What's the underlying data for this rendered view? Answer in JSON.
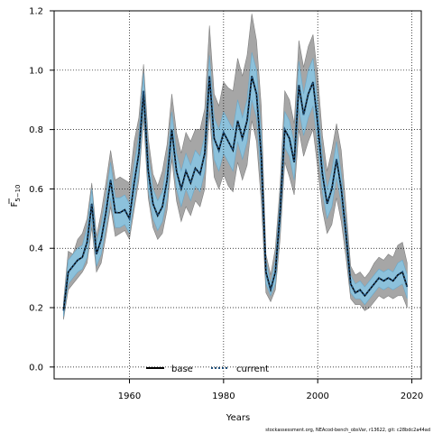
{
  "chart_data": {
    "type": "line",
    "xlabel": "Years",
    "ylabel": "F",
    "ylabel_sub": "5−10",
    "xlim": [
      1944,
      2022
    ],
    "ylim": [
      -0.04,
      1.2
    ],
    "xticks": [
      1960,
      1980,
      2000,
      2020
    ],
    "yticks": [
      0.0,
      0.2,
      0.4,
      0.6,
      0.8,
      1.0,
      1.2
    ],
    "ytick_labels": [
      "0.0",
      "0.2",
      "0.4",
      "0.6",
      "0.8",
      "1.0",
      "1.2"
    ],
    "xtick_labels": [
      "1960",
      "1980",
      "2000",
      "2020"
    ],
    "grid": true,
    "legend_position": "bottom-center",
    "footer": "stockassessment.org, NEAcod-bench_obsVar, r13622, git: c28bdc2a44ad",
    "colors": {
      "base_band": "#a6a6a6",
      "current_band": "#8cc1db",
      "base_line": "#000000",
      "current_line": "#1f4e79"
    },
    "series": [
      {
        "name": "base",
        "style": "solid",
        "x": [
          1946,
          1947,
          1948,
          1949,
          1950,
          1951,
          1952,
          1953,
          1954,
          1955,
          1956,
          1957,
          1958,
          1959,
          1960,
          1961,
          1962,
          1963,
          1964,
          1965,
          1966,
          1967,
          1968,
          1969,
          1970,
          1971,
          1972,
          1973,
          1974,
          1975,
          1976,
          1977,
          1978,
          1979,
          1980,
          1981,
          1982,
          1983,
          1984,
          1985,
          1986,
          1987,
          1988,
          1989,
          1990,
          1991,
          1992,
          1993,
          1994,
          1995,
          1996,
          1997,
          1998,
          1999,
          2000,
          2001,
          2002,
          2003,
          2004,
          2005,
          2006,
          2007,
          2008,
          2009,
          2010,
          2011,
          2012,
          2013,
          2014,
          2015,
          2016,
          2017,
          2018,
          2019
        ],
        "y": [
          0.19,
          0.32,
          0.34,
          0.36,
          0.37,
          0.42,
          0.55,
          0.38,
          0.43,
          0.52,
          0.63,
          0.52,
          0.52,
          0.53,
          0.5,
          0.62,
          0.72,
          0.93,
          0.66,
          0.55,
          0.51,
          0.54,
          0.63,
          0.8,
          0.66,
          0.6,
          0.66,
          0.62,
          0.67,
          0.65,
          0.72,
          0.98,
          0.77,
          0.73,
          0.79,
          0.76,
          0.73,
          0.83,
          0.77,
          0.83,
          0.98,
          0.92,
          0.71,
          0.32,
          0.26,
          0.32,
          0.52,
          0.8,
          0.77,
          0.69,
          0.95,
          0.85,
          0.92,
          0.96,
          0.82,
          0.65,
          0.55,
          0.6,
          0.7,
          0.6,
          0.45,
          0.28,
          0.25,
          0.26,
          0.24,
          0.26,
          0.28,
          0.3,
          0.29,
          0.3,
          0.29,
          0.31,
          0.32,
          0.27
        ],
        "lower": [
          0.16,
          0.26,
          0.28,
          0.3,
          0.32,
          0.35,
          0.47,
          0.32,
          0.35,
          0.44,
          0.54,
          0.44,
          0.45,
          0.46,
          0.43,
          0.53,
          0.63,
          0.84,
          0.57,
          0.47,
          0.43,
          0.45,
          0.53,
          0.7,
          0.56,
          0.49,
          0.54,
          0.51,
          0.56,
          0.54,
          0.6,
          0.86,
          0.64,
          0.6,
          0.65,
          0.61,
          0.59,
          0.69,
          0.63,
          0.68,
          0.83,
          0.76,
          0.56,
          0.25,
          0.22,
          0.26,
          0.43,
          0.69,
          0.64,
          0.58,
          0.8,
          0.71,
          0.76,
          0.8,
          0.67,
          0.53,
          0.45,
          0.48,
          0.57,
          0.49,
          0.37,
          0.23,
          0.21,
          0.21,
          0.19,
          0.2,
          0.22,
          0.24,
          0.23,
          0.24,
          0.23,
          0.24,
          0.24,
          0.2
        ],
        "upper": [
          0.22,
          0.39,
          0.38,
          0.43,
          0.45,
          0.5,
          0.62,
          0.44,
          0.52,
          0.62,
          0.73,
          0.63,
          0.64,
          0.63,
          0.62,
          0.76,
          0.84,
          1.02,
          0.77,
          0.65,
          0.61,
          0.66,
          0.75,
          0.92,
          0.79,
          0.72,
          0.79,
          0.76,
          0.8,
          0.8,
          0.87,
          1.15,
          0.92,
          0.88,
          0.96,
          0.94,
          0.93,
          1.04,
          0.98,
          1.05,
          1.19,
          1.1,
          0.88,
          0.38,
          0.31,
          0.4,
          0.61,
          0.93,
          0.9,
          0.82,
          1.1,
          1.01,
          1.08,
          1.12,
          0.98,
          0.78,
          0.66,
          0.73,
          0.82,
          0.73,
          0.54,
          0.34,
          0.31,
          0.32,
          0.3,
          0.32,
          0.35,
          0.37,
          0.36,
          0.38,
          0.37,
          0.41,
          0.42,
          0.35
        ]
      },
      {
        "name": "current",
        "style": "dotted",
        "x": [
          1946,
          1947,
          1948,
          1949,
          1950,
          1951,
          1952,
          1953,
          1954,
          1955,
          1956,
          1957,
          1958,
          1959,
          1960,
          1961,
          1962,
          1963,
          1964,
          1965,
          1966,
          1967,
          1968,
          1969,
          1970,
          1971,
          1972,
          1973,
          1974,
          1975,
          1976,
          1977,
          1978,
          1979,
          1980,
          1981,
          1982,
          1983,
          1984,
          1985,
          1986,
          1987,
          1988,
          1989,
          1990,
          1991,
          1992,
          1993,
          1994,
          1995,
          1996,
          1997,
          1998,
          1999,
          2000,
          2001,
          2002,
          2003,
          2004,
          2005,
          2006,
          2007,
          2008,
          2009,
          2010,
          2011,
          2012,
          2013,
          2014,
          2015,
          2016,
          2017,
          2018,
          2019
        ],
        "y": [
          0.19,
          0.32,
          0.34,
          0.36,
          0.37,
          0.42,
          0.55,
          0.38,
          0.43,
          0.52,
          0.63,
          0.52,
          0.52,
          0.53,
          0.5,
          0.62,
          0.72,
          0.93,
          0.66,
          0.55,
          0.51,
          0.54,
          0.63,
          0.8,
          0.66,
          0.6,
          0.66,
          0.62,
          0.67,
          0.65,
          0.72,
          0.98,
          0.77,
          0.73,
          0.79,
          0.76,
          0.73,
          0.83,
          0.77,
          0.83,
          0.98,
          0.92,
          0.71,
          0.32,
          0.26,
          0.32,
          0.52,
          0.8,
          0.77,
          0.69,
          0.95,
          0.85,
          0.92,
          0.96,
          0.82,
          0.65,
          0.55,
          0.6,
          0.7,
          0.6,
          0.45,
          0.28,
          0.25,
          0.26,
          0.24,
          0.26,
          0.28,
          0.3,
          0.29,
          0.3,
          0.29,
          0.31,
          0.32,
          0.27
        ],
        "lower": [
          0.17,
          0.28,
          0.3,
          0.32,
          0.33,
          0.37,
          0.5,
          0.34,
          0.38,
          0.47,
          0.57,
          0.47,
          0.47,
          0.48,
          0.45,
          0.56,
          0.66,
          0.87,
          0.6,
          0.5,
          0.46,
          0.49,
          0.57,
          0.74,
          0.6,
          0.54,
          0.6,
          0.56,
          0.61,
          0.59,
          0.66,
          0.91,
          0.7,
          0.66,
          0.72,
          0.69,
          0.66,
          0.76,
          0.7,
          0.76,
          0.9,
          0.84,
          0.63,
          0.28,
          0.24,
          0.28,
          0.47,
          0.74,
          0.71,
          0.63,
          0.87,
          0.78,
          0.84,
          0.88,
          0.75,
          0.59,
          0.5,
          0.54,
          0.64,
          0.55,
          0.41,
          0.25,
          0.23,
          0.23,
          0.21,
          0.23,
          0.25,
          0.27,
          0.26,
          0.27,
          0.26,
          0.27,
          0.28,
          0.23
        ],
        "upper": [
          0.21,
          0.36,
          0.38,
          0.4,
          0.41,
          0.47,
          0.6,
          0.42,
          0.48,
          0.57,
          0.69,
          0.57,
          0.57,
          0.58,
          0.55,
          0.68,
          0.78,
          0.99,
          0.72,
          0.6,
          0.56,
          0.59,
          0.69,
          0.86,
          0.72,
          0.66,
          0.72,
          0.68,
          0.73,
          0.71,
          0.78,
          1.05,
          0.84,
          0.8,
          0.86,
          0.83,
          0.8,
          0.9,
          0.84,
          0.9,
          1.06,
          1.0,
          0.79,
          0.36,
          0.28,
          0.36,
          0.57,
          0.86,
          0.83,
          0.75,
          1.03,
          0.92,
          1.0,
          1.04,
          0.89,
          0.71,
          0.6,
          0.66,
          0.76,
          0.65,
          0.49,
          0.31,
          0.28,
          0.29,
          0.27,
          0.29,
          0.31,
          0.33,
          0.32,
          0.33,
          0.32,
          0.35,
          0.36,
          0.31
        ]
      }
    ]
  }
}
